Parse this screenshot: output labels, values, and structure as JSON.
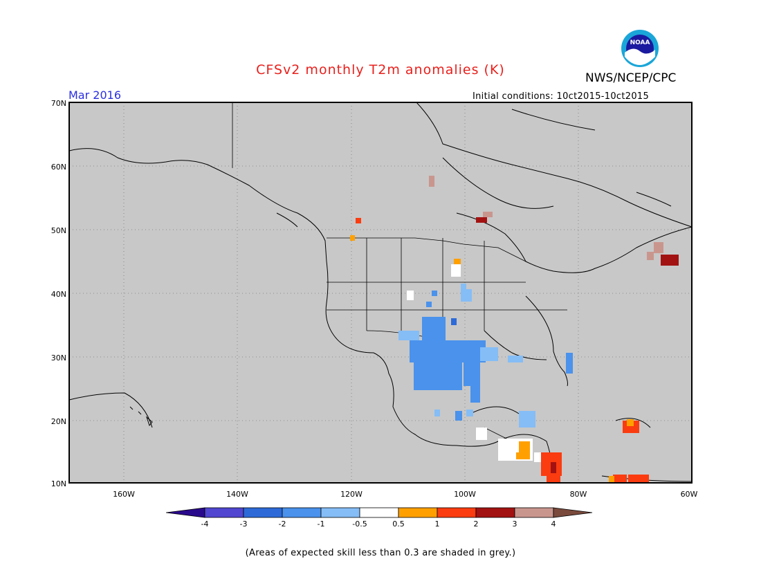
{
  "header": {
    "title": "CFSv2 monthly T2m anomalies (K)",
    "month": "Mar 2016",
    "org": "NWS/NCEP/CPC",
    "init": "Initial conditions: 10ct2015-10ct2015",
    "logo_text": "NOAA"
  },
  "axes": {
    "lat_labels": [
      "70N",
      "60N",
      "50N",
      "40N",
      "30N",
      "20N",
      "10N"
    ],
    "lon_labels": [
      "160W",
      "140W",
      "120W",
      "100W",
      "80W",
      "60W"
    ]
  },
  "colorbar": {
    "labels": [
      "-4",
      "-3",
      "-2",
      "-1",
      "-0.5",
      "0.5",
      "1",
      "2",
      "3",
      "4"
    ],
    "colors": [
      "#2a0a8c",
      "#5046d0",
      "#2d6ad8",
      "#4a92ec",
      "#85bdf6",
      "#ffffff",
      "#ffa000",
      "#fa3c10",
      "#a31212",
      "#c9968e",
      "#7a4a3c"
    ]
  },
  "colors": {
    "background": "#c8c8c8",
    "grey_skill": "#c8c8c8",
    "title": "#e8201c",
    "month": "#2a2ee0"
  },
  "note": "(Areas of expected skill less than 0.3 are shaded in grey.)"
}
